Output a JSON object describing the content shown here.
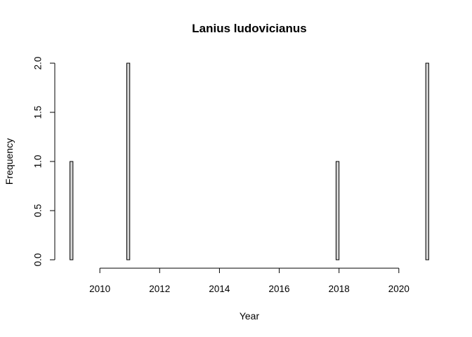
{
  "chart_data": {
    "type": "bar",
    "title": "Lanius ludovicianus",
    "xlabel": "Year",
    "ylabel": "Frequency",
    "bin_width": 0.1,
    "x_bins_start": 2009,
    "x_bins_end": 2021,
    "xlim": [
      2009,
      2021
    ],
    "ylim": [
      0,
      2
    ],
    "x_ticks": [
      2010,
      2012,
      2014,
      2016,
      2018,
      2020
    ],
    "y_ticks": [
      "0.0",
      "0.5",
      "1.0",
      "1.5",
      "2.0"
    ],
    "bars": [
      {
        "x": 2009.0,
        "value": 1
      },
      {
        "x": 2010.9,
        "value": 2
      },
      {
        "x": 2017.9,
        "value": 1
      },
      {
        "x": 2020.9,
        "value": 2
      }
    ],
    "grid": false,
    "bar_fill": "#d3d3d3",
    "bar_stroke": "#000000"
  }
}
